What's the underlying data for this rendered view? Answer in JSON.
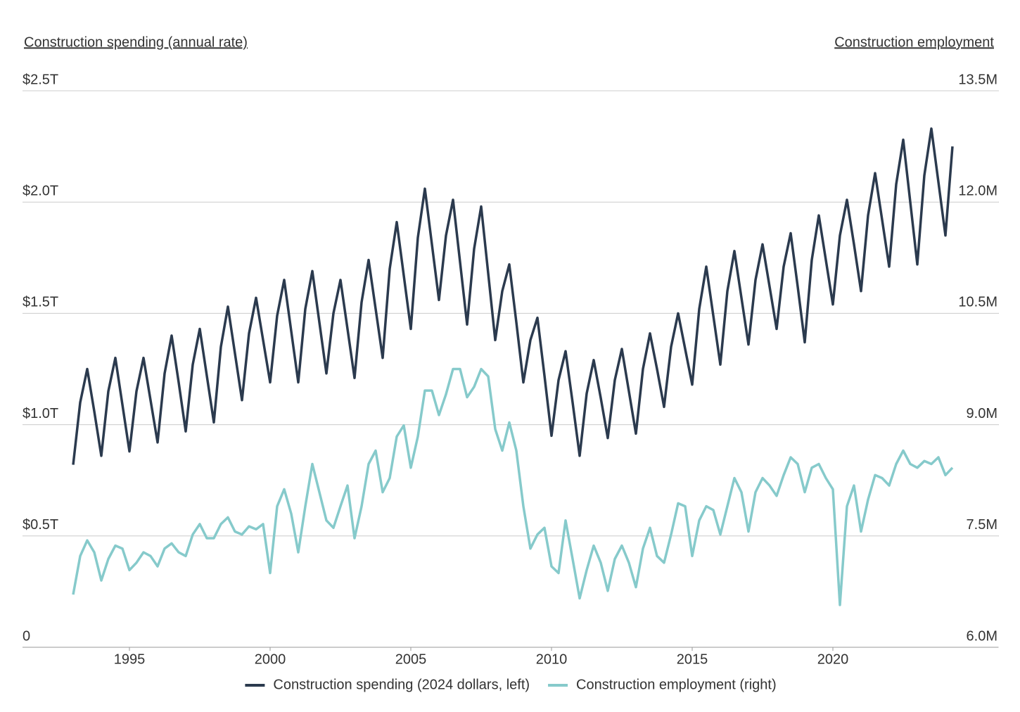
{
  "chart_data": {
    "type": "line",
    "y_label": "Construction spending (annual rate)",
    "y2_label": "Construction employment",
    "x": [
      1993,
      1993.25,
      1993.5,
      1993.75,
      1994,
      1994.25,
      1994.5,
      1994.75,
      1995,
      1995.25,
      1995.5,
      1995.75,
      1996,
      1996.25,
      1996.5,
      1996.75,
      1997,
      1997.25,
      1997.5,
      1997.75,
      1998,
      1998.25,
      1998.5,
      1998.75,
      1999,
      1999.25,
      1999.5,
      1999.75,
      2000,
      2000.25,
      2000.5,
      2000.75,
      2001,
      2001.25,
      2001.5,
      2001.75,
      2002,
      2002.25,
      2002.5,
      2002.75,
      2003,
      2003.25,
      2003.5,
      2003.75,
      2004,
      2004.25,
      2004.5,
      2004.75,
      2005,
      2005.25,
      2005.5,
      2005.75,
      2006,
      2006.25,
      2006.5,
      2006.75,
      2007,
      2007.25,
      2007.5,
      2007.75,
      2008,
      2008.25,
      2008.5,
      2008.75,
      2009,
      2009.25,
      2009.5,
      2009.75,
      2010,
      2010.25,
      2010.5,
      2010.75,
      2011,
      2011.25,
      2011.5,
      2011.75,
      2012,
      2012.25,
      2012.5,
      2012.75,
      2013,
      2013.25,
      2013.5,
      2013.75,
      2014,
      2014.25,
      2014.5,
      2014.75,
      2015,
      2015.25,
      2015.5,
      2015.75,
      2016,
      2016.25,
      2016.5,
      2016.75,
      2017,
      2017.25,
      2017.5,
      2017.75,
      2018,
      2018.25,
      2018.5,
      2018.75,
      2019,
      2019.25,
      2019.5,
      2019.75,
      2020,
      2020.25,
      2020.5,
      2020.75,
      2021,
      2021.25,
      2021.5,
      2021.75,
      2022,
      2022.25,
      2022.5,
      2022.75,
      2023,
      2023.25,
      2023.5,
      2023.75,
      2024,
      2024.25
    ],
    "series": [
      {
        "name": "Construction spending (2024 dollars, left)",
        "color": "#2b3a4e",
        "axis": "y",
        "values": [
          0.82,
          1.1,
          1.25,
          1.06,
          0.86,
          1.15,
          1.3,
          1.09,
          0.88,
          1.15,
          1.3,
          1.11,
          0.92,
          1.23,
          1.4,
          1.19,
          0.97,
          1.27,
          1.43,
          1.22,
          1.01,
          1.35,
          1.53,
          1.32,
          1.11,
          1.41,
          1.57,
          1.38,
          1.19,
          1.49,
          1.65,
          1.42,
          1.19,
          1.52,
          1.69,
          1.46,
          1.23,
          1.5,
          1.65,
          1.43,
          1.21,
          1.55,
          1.74,
          1.52,
          1.3,
          1.7,
          1.91,
          1.67,
          1.43,
          1.84,
          2.06,
          1.81,
          1.56,
          1.85,
          2.01,
          1.73,
          1.45,
          1.79,
          1.98,
          1.68,
          1.38,
          1.6,
          1.72,
          1.46,
          1.19,
          1.38,
          1.48,
          1.22,
          0.95,
          1.2,
          1.33,
          1.1,
          0.86,
          1.14,
          1.29,
          1.12,
          0.94,
          1.2,
          1.34,
          1.15,
          0.96,
          1.25,
          1.41,
          1.25,
          1.08,
          1.35,
          1.5,
          1.34,
          1.18,
          1.52,
          1.71,
          1.49,
          1.27,
          1.6,
          1.78,
          1.57,
          1.36,
          1.65,
          1.81,
          1.62,
          1.43,
          1.71,
          1.86,
          1.62,
          1.37,
          1.74,
          1.94,
          1.74,
          1.54,
          1.85,
          2.01,
          1.81,
          1.6,
          1.94,
          2.13,
          1.92,
          1.71,
          2.08,
          2.28,
          2.0,
          1.72,
          2.12,
          2.33,
          2.09,
          1.85,
          2.25
        ]
      },
      {
        "name": "Construction employment (right)",
        "color": "#86cacb",
        "axis": "y2",
        "values": [
          6.71,
          7.23,
          7.44,
          7.28,
          6.9,
          7.19,
          7.37,
          7.33,
          7.04,
          7.14,
          7.28,
          7.23,
          7.09,
          7.33,
          7.4,
          7.28,
          7.23,
          7.52,
          7.66,
          7.47,
          7.47,
          7.66,
          7.75,
          7.56,
          7.52,
          7.63,
          7.59,
          7.66,
          7.0,
          7.9,
          8.13,
          7.8,
          7.28,
          7.9,
          8.47,
          8.09,
          7.71,
          7.61,
          7.9,
          8.18,
          7.47,
          7.9,
          8.47,
          8.65,
          8.09,
          8.28,
          8.84,
          8.99,
          8.42,
          8.84,
          9.46,
          9.46,
          9.13,
          9.41,
          9.75,
          9.75,
          9.37,
          9.51,
          9.75,
          9.65,
          8.94,
          8.65,
          9.03,
          8.65,
          7.9,
          7.33,
          7.52,
          7.61,
          7.09,
          7.0,
          7.71,
          7.19,
          6.66,
          7.04,
          7.37,
          7.14,
          6.76,
          7.19,
          7.37,
          7.14,
          6.81,
          7.33,
          7.61,
          7.23,
          7.14,
          7.52,
          7.94,
          7.9,
          7.23,
          7.71,
          7.9,
          7.85,
          7.52,
          7.9,
          8.28,
          8.09,
          7.56,
          8.09,
          8.28,
          8.18,
          8.04,
          8.32,
          8.56,
          8.47,
          8.09,
          8.42,
          8.47,
          8.28,
          8.13,
          6.57,
          7.9,
          8.18,
          7.56,
          7.99,
          8.32,
          8.28,
          8.18,
          8.47,
          8.65,
          8.47,
          8.42,
          8.51,
          8.47,
          8.56,
          8.32,
          8.42
        ]
      }
    ],
    "xlim": [
      1991.2,
      2025.9
    ],
    "xticks": [
      1995,
      2000,
      2005,
      2010,
      2015,
      2020
    ],
    "ylim": [
      0,
      2.5
    ],
    "yticks": [
      0,
      {
        "value": 0.5,
        "label": "$0.5T"
      },
      {
        "value": 1,
        "label": "$1.0T"
      },
      {
        "value": 1.5,
        "label": "$1.5T"
      },
      {
        "value": 2,
        "label": "$2.0T"
      },
      {
        "value": 2.5,
        "label": "$2.5T"
      }
    ],
    "y2lim": [
      6,
      13.5
    ],
    "y2ticks": [
      {
        "value": 6,
        "label": "6.0M"
      },
      {
        "value": 7.5,
        "label": "7.5M"
      },
      {
        "value": 9,
        "label": "9.0M"
      },
      {
        "value": 10.5,
        "label": "10.5M"
      },
      {
        "value": 12,
        "label": "12.0M"
      },
      {
        "value": 13.5,
        "label": "13.5M"
      }
    ],
    "grid": true,
    "legend": "bottom"
  }
}
